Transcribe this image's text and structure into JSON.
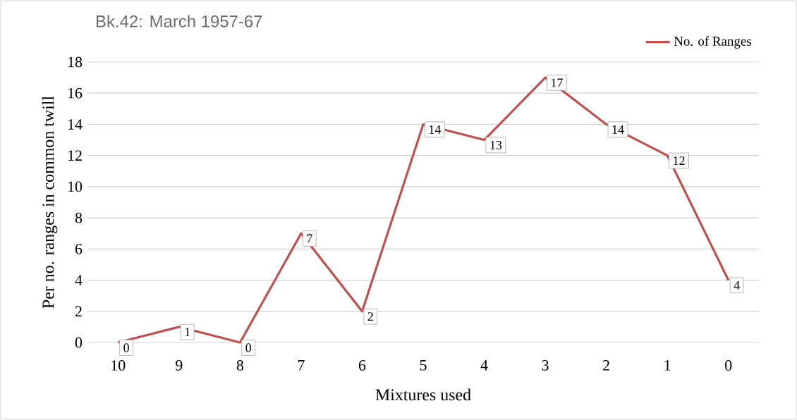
{
  "chart_data": {
    "type": "line",
    "title": "Bk.42: March 1957-67",
    "xlabel": "Mixtures used",
    "ylabel": "Per no. ranges in common twill",
    "categories": [
      "10",
      "9",
      "8",
      "7",
      "6",
      "5",
      "4",
      "3",
      "2",
      "1",
      "0"
    ],
    "series": [
      {
        "name": "No. of Ranges",
        "color": "#c0504d",
        "values": [
          0,
          1,
          0,
          7,
          2,
          14,
          13,
          17,
          14,
          12,
          4
        ]
      }
    ],
    "ylim": [
      0,
      18
    ],
    "yticks": [
      0,
      2,
      4,
      6,
      8,
      10,
      12,
      14,
      16,
      18
    ],
    "grid": "y",
    "legend": "top right",
    "data_labels": true,
    "marker": "none",
    "line_style": "solid"
  }
}
